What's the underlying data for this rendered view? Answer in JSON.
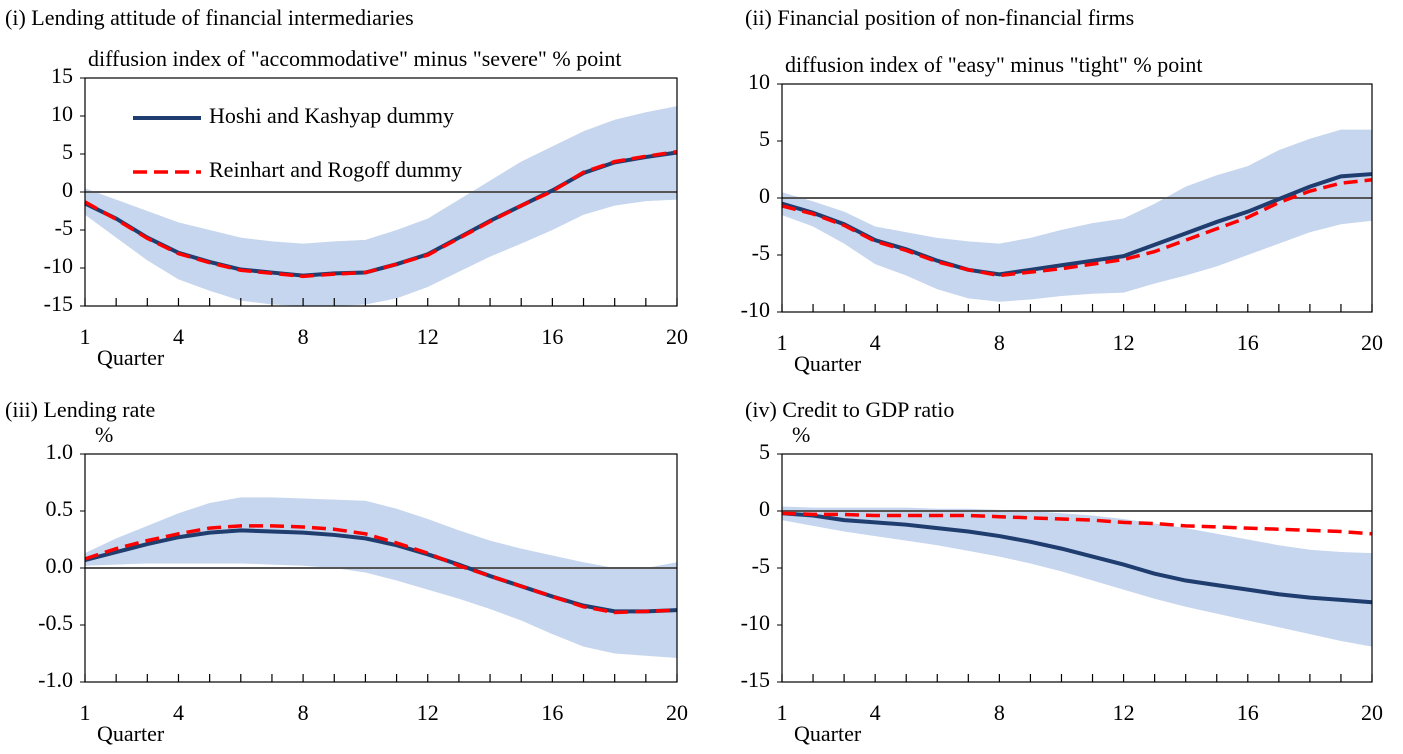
{
  "chart_data": [
    {
      "type": "line",
      "title": "(i) Lending attitude of financial intermediaries",
      "subtitle": "diffusion index of \"accommodative\" minus \"severe\" %  point",
      "x_label": "Quarter",
      "x": [
        1,
        2,
        3,
        4,
        5,
        6,
        7,
        8,
        9,
        10,
        11,
        12,
        13,
        14,
        15,
        16,
        17,
        18,
        19,
        20
      ],
      "xlim": [
        1,
        20
      ],
      "xticks": [
        1,
        4,
        8,
        12,
        16,
        20
      ],
      "ylim": [
        -15,
        15
      ],
      "yticks": [
        -15,
        -10,
        -5,
        0,
        5,
        10,
        15
      ],
      "legend": "upper left",
      "band": {
        "color": "#c6d6ee",
        "upper": [
          0.5,
          -1,
          -2.5,
          -4,
          -5,
          -6,
          -6.5,
          -6.8,
          -6.5,
          -6.3,
          -5,
          -3.5,
          -1,
          1.5,
          4,
          6,
          8,
          9.5,
          10.5,
          11.3
        ],
        "lower": [
          -3,
          -6,
          -9,
          -11.5,
          -13,
          -14.3,
          -14.8,
          -15,
          -15,
          -14.8,
          -14,
          -12.5,
          -10.5,
          -8.5,
          -6.8,
          -5,
          -3,
          -1.8,
          -1.2,
          -1
        ]
      },
      "series": [
        {
          "name": "Hoshi and Kashyap dummy",
          "color": "#1f3d6e",
          "dash": false,
          "values": [
            -1.5,
            -3.5,
            -6,
            -8,
            -9.2,
            -10.2,
            -10.6,
            -11,
            -10.7,
            -10.6,
            -9.5,
            -8.2,
            -6,
            -3.8,
            -1.8,
            0.2,
            2.5,
            3.9,
            4.6,
            5.2
          ]
        },
        {
          "name": "Reinhart and Rogoff dummy",
          "color": "#ff0000",
          "dash": true,
          "values": [
            -1.3,
            -3.6,
            -6.1,
            -8.1,
            -9.3,
            -10.3,
            -10.7,
            -11.1,
            -10.8,
            -10.6,
            -9.5,
            -8.3,
            -6.1,
            -3.9,
            -1.8,
            0.1,
            2.6,
            4,
            4.7,
            5.3
          ]
        }
      ]
    },
    {
      "type": "line",
      "title": "(ii) Financial position of non-financial firms",
      "subtitle": "diffusion index of \"easy\" minus \"tight\" %  point",
      "x_label": "Quarter",
      "x": [
        1,
        2,
        3,
        4,
        5,
        6,
        7,
        8,
        9,
        10,
        11,
        12,
        13,
        14,
        15,
        16,
        17,
        18,
        19,
        20
      ],
      "xlim": [
        1,
        20
      ],
      "xticks": [
        1,
        4,
        8,
        12,
        16,
        20
      ],
      "ylim": [
        -10,
        10
      ],
      "yticks": [
        -10,
        -5,
        0,
        5,
        10
      ],
      "band": {
        "color": "#c6d6ee",
        "upper": [
          0.5,
          -0.3,
          -1.2,
          -2.5,
          -3,
          -3.5,
          -3.8,
          -4,
          -3.5,
          -2.8,
          -2.2,
          -1.8,
          -0.5,
          1,
          2,
          2.8,
          4.2,
          5.2,
          6,
          6
        ],
        "lower": [
          -1.5,
          -2.5,
          -4,
          -5.8,
          -6.8,
          -8,
          -8.8,
          -9.1,
          -8.9,
          -8.6,
          -8.4,
          -8.3,
          -7.5,
          -6.8,
          -6,
          -5,
          -4,
          -3,
          -2.3,
          -2
        ]
      },
      "series": [
        {
          "name": "Hoshi and Kashyap dummy",
          "color": "#1f3d6e",
          "dash": false,
          "values": [
            -0.5,
            -1.3,
            -2.3,
            -3.7,
            -4.5,
            -5.5,
            -6.3,
            -6.7,
            -6.3,
            -5.9,
            -5.5,
            -5.1,
            -4.1,
            -3.1,
            -2.1,
            -1.2,
            -0.1,
            1,
            1.9,
            2.1
          ]
        },
        {
          "name": "Reinhart and Rogoff dummy",
          "color": "#ff0000",
          "dash": true,
          "values": [
            -0.7,
            -1.4,
            -2.4,
            -3.8,
            -4.6,
            -5.6,
            -6.3,
            -6.8,
            -6.5,
            -6.2,
            -5.8,
            -5.4,
            -4.7,
            -3.7,
            -2.7,
            -1.7,
            -0.4,
            0.6,
            1.3,
            1.6
          ]
        }
      ]
    },
    {
      "type": "line",
      "title": "(iii) Lending rate",
      "subtitle": "%",
      "x_label": "Quarter",
      "x": [
        1,
        2,
        3,
        4,
        5,
        6,
        7,
        8,
        9,
        10,
        11,
        12,
        13,
        14,
        15,
        16,
        17,
        18,
        19,
        20
      ],
      "xlim": [
        1,
        20
      ],
      "xticks": [
        1,
        4,
        8,
        12,
        16,
        20
      ],
      "ylim": [
        -1,
        1
      ],
      "yticks": [
        {
          "value": -1,
          "label": "-1.0"
        },
        -0.5,
        {
          "value": 0,
          "label": "0.0"
        },
        0.5,
        {
          "value": 1,
          "label": "1.0"
        }
      ],
      "band": {
        "color": "#c6d6ee",
        "upper": [
          0.13,
          0.26,
          0.37,
          0.48,
          0.57,
          0.62,
          0.62,
          0.61,
          0.6,
          0.59,
          0.52,
          0.43,
          0.33,
          0.24,
          0.17,
          0.11,
          0.05,
          0,
          0,
          0.05
        ],
        "lower": [
          0.02,
          0.03,
          0.04,
          0.04,
          0.04,
          0.04,
          0.03,
          0.02,
          0,
          -0.04,
          -0.11,
          -0.19,
          -0.27,
          -0.36,
          -0.46,
          -0.58,
          -0.69,
          -0.75,
          -0.77,
          -0.79
        ]
      },
      "series": [
        {
          "name": "Hoshi and Kashyap dummy",
          "color": "#1f3d6e",
          "dash": false,
          "values": [
            0.07,
            0.14,
            0.21,
            0.27,
            0.31,
            0.33,
            0.32,
            0.31,
            0.29,
            0.26,
            0.2,
            0.12,
            0.03,
            -0.07,
            -0.16,
            -0.25,
            -0.33,
            -0.38,
            -0.38,
            -0.37
          ]
        },
        {
          "name": "Reinhart and Rogoff dummy",
          "color": "#ff0000",
          "dash": true,
          "values": [
            0.08,
            0.17,
            0.24,
            0.3,
            0.35,
            0.37,
            0.37,
            0.36,
            0.34,
            0.3,
            0.22,
            0.13,
            0.02,
            -0.07,
            -0.16,
            -0.25,
            -0.34,
            -0.39,
            -0.38,
            -0.37
          ]
        }
      ]
    },
    {
      "type": "line",
      "title": "(iv) Credit to GDP ratio",
      "subtitle": "%",
      "x_label": "Quarter",
      "x": [
        1,
        2,
        3,
        4,
        5,
        6,
        7,
        8,
        9,
        10,
        11,
        12,
        13,
        14,
        15,
        16,
        17,
        18,
        19,
        20
      ],
      "xlim": [
        1,
        20
      ],
      "xticks": [
        1,
        4,
        8,
        12,
        16,
        20
      ],
      "ylim": [
        -15,
        5
      ],
      "yticks": [
        -15,
        -10,
        -5,
        0,
        5
      ],
      "band": {
        "color": "#c6d6ee",
        "upper": [
          0.4,
          0.3,
          0.3,
          0.3,
          0.3,
          0.2,
          0.2,
          0.1,
          0,
          -0.2,
          -0.4,
          -0.7,
          -1.1,
          -1.5,
          -2,
          -2.5,
          -3,
          -3.4,
          -3.6,
          -3.7
        ],
        "lower": [
          -0.8,
          -1.3,
          -1.8,
          -2.2,
          -2.6,
          -3,
          -3.5,
          -4,
          -4.6,
          -5.3,
          -6.1,
          -6.9,
          -7.7,
          -8.4,
          -9,
          -9.6,
          -10.2,
          -10.8,
          -11.4,
          -11.9
        ]
      },
      "series": [
        {
          "name": "Hoshi and Kashyap dummy",
          "color": "#1f3d6e",
          "dash": false,
          "values": [
            -0.2,
            -0.4,
            -0.8,
            -1,
            -1.2,
            -1.5,
            -1.8,
            -2.2,
            -2.7,
            -3.3,
            -4,
            -4.7,
            -5.5,
            -6.1,
            -6.5,
            -6.9,
            -7.3,
            -7.6,
            -7.8,
            -8
          ]
        },
        {
          "name": "Reinhart and Rogoff dummy",
          "color": "#ff0000",
          "dash": true,
          "values": [
            -0.2,
            -0.3,
            -0.3,
            -0.4,
            -0.4,
            -0.4,
            -0.4,
            -0.5,
            -0.6,
            -0.7,
            -0.8,
            -1,
            -1.1,
            -1.3,
            -1.4,
            -1.5,
            -1.6,
            -1.7,
            -1.8,
            -2
          ]
        }
      ]
    }
  ]
}
